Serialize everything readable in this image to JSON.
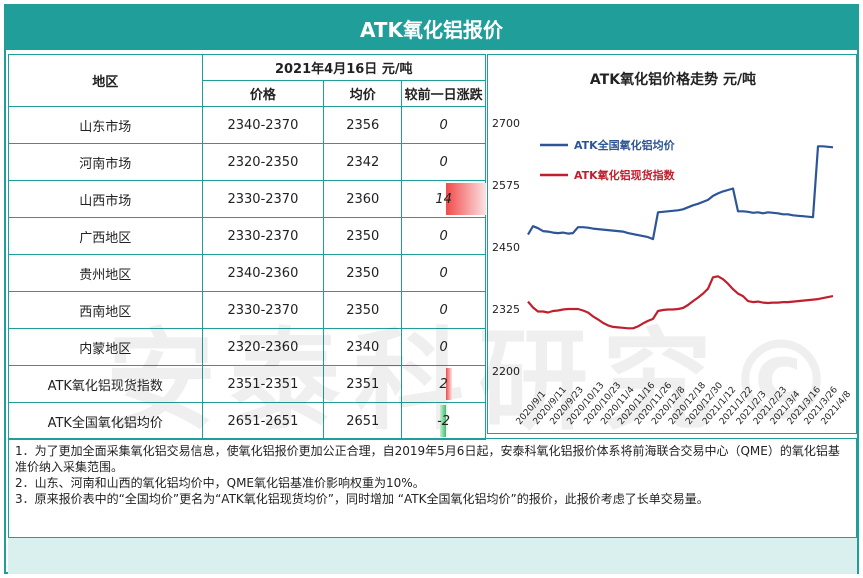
{
  "title": "ATK氧化铝报价",
  "watermark": "安泰科研究©",
  "table": {
    "region_header": "地区",
    "date_header": "2021年4月16日  元/吨",
    "col_range": "价格",
    "col_avg": "均价",
    "col_change": "较前一日涨跌",
    "rows": [
      {
        "region": "山东市场",
        "range": "2340-2370",
        "avg": "2356",
        "change": "0",
        "change_value": 0
      },
      {
        "region": "河南市场",
        "range": "2320-2350",
        "avg": "2342",
        "change": "0",
        "change_value": 0
      },
      {
        "region": "山西市场",
        "range": "2330-2370",
        "avg": "2360",
        "change": "14",
        "change_value": 14
      },
      {
        "region": "广西地区",
        "range": "2330-2370",
        "avg": "2350",
        "change": "0",
        "change_value": 0
      },
      {
        "region": "贵州地区",
        "range": "2340-2360",
        "avg": "2350",
        "change": "0",
        "change_value": 0
      },
      {
        "region": "西南地区",
        "range": "2330-2370",
        "avg": "2350",
        "change": "0",
        "change_value": 0
      },
      {
        "region": "内蒙地区",
        "range": "2320-2360",
        "avg": "2340",
        "change": "0",
        "change_value": 0
      },
      {
        "region": "ATK氧化铝现货指数",
        "range": "2351-2351",
        "avg": "2351",
        "change": "2",
        "change_value": 2
      },
      {
        "region": "ATK全国氧化铝均价",
        "range": "2651-2651",
        "avg": "2651",
        "change": "-2",
        "change_value": -2
      }
    ]
  },
  "colors": {
    "accent": "#1f9e9a",
    "series1": "#2e5597",
    "series2": "#c0202e"
  },
  "chart_data": {
    "type": "line",
    "title": "ATK氧化铝价格走势  元/吨",
    "ylim": [
      2200,
      2700
    ],
    "yticks": [
      2200,
      2325,
      2450,
      2575,
      2700
    ],
    "xticks": [
      "2020/9/1",
      "2020/9/11",
      "2020/9/23",
      "2020/10/13",
      "2020/10/23",
      "2020/11/4",
      "2020/11/16",
      "2020/11/26",
      "2020/12/8",
      "2020/12/18",
      "2020/12/30",
      "2021/1/12",
      "2021/1/22",
      "2021/2/3",
      "2021/2/23",
      "2021/3/4",
      "2021/3/16",
      "2021/3/26",
      "2021/4/8"
    ],
    "series": [
      {
        "name": "ATK全国氧化铝均价",
        "color": "#2e5597",
        "values": [
          2475,
          2492,
          2488,
          2482,
          2481,
          2479,
          2478,
          2479,
          2477,
          2478,
          2490,
          2490,
          2489,
          2487,
          2486,
          2485,
          2484,
          2483,
          2482,
          2481,
          2478,
          2476,
          2474,
          2472,
          2470,
          2466,
          2520,
          2521,
          2522,
          2523,
          2524,
          2526,
          2530,
          2534,
          2537,
          2541,
          2545,
          2553,
          2558,
          2562,
          2565,
          2568,
          2522,
          2522,
          2521,
          2519,
          2520,
          2518,
          2520,
          2519,
          2518,
          2516,
          2516,
          2514,
          2513,
          2512,
          2511,
          2510,
          2653,
          2653,
          2652,
          2651
        ]
      },
      {
        "name": "ATK氧化铝现货指数",
        "color": "#c0202e",
        "values": [
          2340,
          2328,
          2320,
          2320,
          2318,
          2321,
          2322,
          2324,
          2325,
          2325,
          2325,
          2322,
          2318,
          2310,
          2304,
          2297,
          2292,
          2289,
          2288,
          2287,
          2286,
          2286,
          2290,
          2296,
          2301,
          2305,
          2321,
          2323,
          2324,
          2324,
          2325,
          2327,
          2333,
          2341,
          2348,
          2356,
          2366,
          2389,
          2391,
          2385,
          2376,
          2365,
          2356,
          2351,
          2341,
          2339,
          2340,
          2338,
          2337,
          2338,
          2338,
          2339,
          2339,
          2340,
          2341,
          2342,
          2343,
          2344,
          2345,
          2347,
          2349,
          2351
        ]
      }
    ]
  },
  "notes": [
    "1．为了更加全面采集氧化铝交易信息，使氧化铝报价更加公正合理，自2019年5月6日起，安泰科氧化铝报价体系将前海联合交易中心（QME）的氧化铝基准价纳入采集范围。",
    "2．山东、河南和山西的氧化铝均价中，QME氧化铝基准价影响权重为10%。",
    "3．原来报价表中的“全国均价”更名为“ATK氧化铝现货均价”，同时增加 “ATK全国氧化铝均价”的报价，此报价考虑了长单交易量。"
  ]
}
